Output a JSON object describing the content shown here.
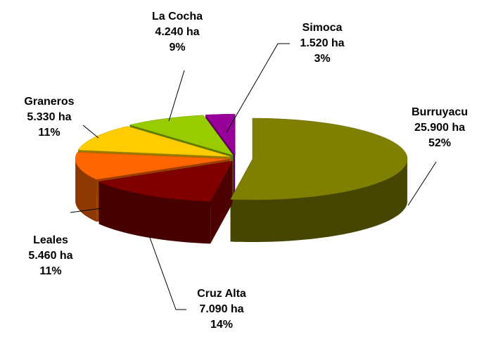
{
  "chart_data": {
    "type": "pie",
    "categories": [
      "Burruyacu",
      "Cruz Alta",
      "Leales",
      "Graneros",
      "La Cocha",
      "Simoca"
    ],
    "values": [
      25900,
      7090,
      5460,
      5330,
      4240,
      1520
    ],
    "value_labels": [
      "25.900 ha",
      "7.090 ha",
      "5.460 ha",
      "5.330 ha",
      "4.240 ha",
      "1.520 ha"
    ],
    "percent_labels": [
      "52%",
      "14%",
      "11%",
      "11%",
      "9%",
      "3%"
    ],
    "colors": [
      "#808000",
      "#800000",
      "#ff6600",
      "#ffcc00",
      "#99cc00",
      "#990099"
    ]
  }
}
